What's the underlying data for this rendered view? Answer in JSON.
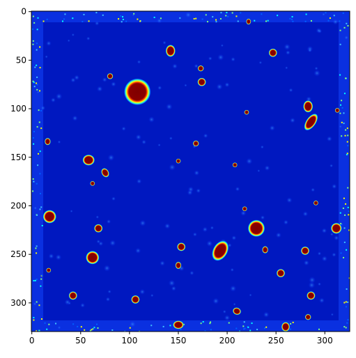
{
  "chart_data": {
    "type": "image",
    "colormap": "jet",
    "xlim": [
      -0.5,
      325.5
    ],
    "xticks": [
      0,
      50,
      100,
      150,
      200,
      250,
      300
    ],
    "ylim": [
      329.5,
      -0.5
    ],
    "yticks": [
      0,
      50,
      100,
      150,
      200,
      250,
      300
    ]
  }
}
